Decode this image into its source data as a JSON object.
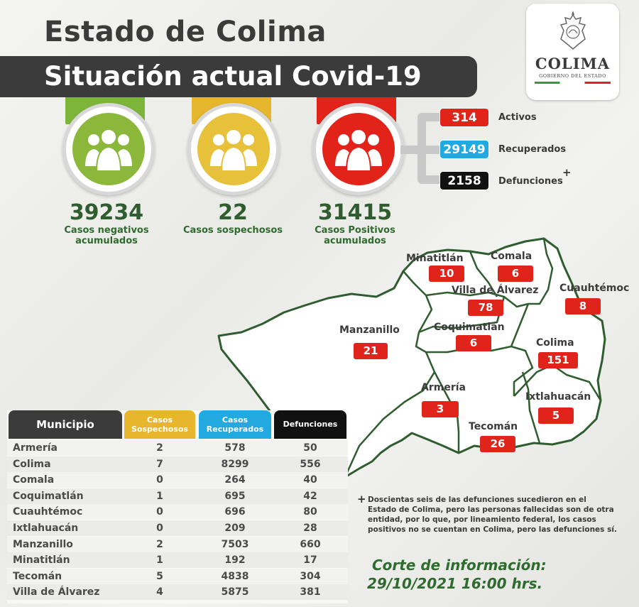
{
  "header": {
    "title": "Estado de Colima",
    "subtitle": "Situación actual Covid-19"
  },
  "logo": {
    "word": "COLIMA",
    "sub": "GOBIERNO DEL ESTADO"
  },
  "summary": {
    "negativos": {
      "value": "39234",
      "caption_1": "Casos negativos",
      "caption_2": "acumulados",
      "color": "#8bb83a",
      "tab_color": "#7db53b"
    },
    "sospechosos": {
      "value": "22",
      "caption_1": "Casos sospechosos",
      "color": "#e7c13a",
      "tab_color": "#e5b62e"
    },
    "positivos": {
      "value": "31415",
      "caption_1": "Casos Positivos",
      "caption_2": "acumulados",
      "color": "#e2231a",
      "tab_color": "#e2231a"
    }
  },
  "stats": [
    {
      "value": "314",
      "label": "Activos",
      "color": "#e2231a"
    },
    {
      "value": "29149",
      "label": "Recuperados",
      "color": "#22a9df"
    },
    {
      "value": "2158",
      "label": "Defunciones",
      "color": "#111111",
      "mark": "+"
    }
  ],
  "map": {
    "regions": [
      {
        "name": "Minatitlán",
        "value": "10"
      },
      {
        "name": "Comala",
        "value": "6"
      },
      {
        "name": "Villa de Álvarez",
        "value": "78"
      },
      {
        "name": "Cuauhtémoc",
        "value": "8"
      },
      {
        "name": "Manzanillo",
        "value": "21"
      },
      {
        "name": "Coquimatlán",
        "value": "6"
      },
      {
        "name": "Colima",
        "value": "151"
      },
      {
        "name": "Armería",
        "value": "3"
      },
      {
        "name": "Ixtlahuacán",
        "value": "5"
      },
      {
        "name": "Tecomán",
        "value": "26"
      }
    ]
  },
  "table": {
    "headers": {
      "municipio": "Municipio",
      "sospechosos_1": "Casos",
      "sospechosos_2": "Sospechosos",
      "recuperados_1": "Casos",
      "recuperados_2": "Recuperados",
      "defunciones": "Defunciones"
    },
    "header_colors": {
      "municipio": "#3b3b3b",
      "sospechosos": "#e7b62c",
      "recuperados": "#22a9df",
      "defunciones": "#111111"
    },
    "rows": [
      {
        "municipio": "Armería",
        "sospechosos": "2",
        "recuperados": "578",
        "defunciones": "50"
      },
      {
        "municipio": "Colima",
        "sospechosos": "7",
        "recuperados": "8299",
        "defunciones": "556"
      },
      {
        "municipio": "Comala",
        "sospechosos": "0",
        "recuperados": "264",
        "defunciones": "40"
      },
      {
        "municipio": "Coquimatlán",
        "sospechosos": "1",
        "recuperados": "695",
        "defunciones": "42"
      },
      {
        "municipio": "Cuauhtémoc",
        "sospechosos": "0",
        "recuperados": "696",
        "defunciones": "80"
      },
      {
        "municipio": "Ixtlahuacán",
        "sospechosos": "0",
        "recuperados": "209",
        "defunciones": "28"
      },
      {
        "municipio": "Manzanillo",
        "sospechosos": "2",
        "recuperados": "7503",
        "defunciones": "660"
      },
      {
        "municipio": "Minatitlán",
        "sospechosos": "1",
        "recuperados": "192",
        "defunciones": "17"
      },
      {
        "municipio": "Tecomán",
        "sospechosos": "5",
        "recuperados": "4838",
        "defunciones": "304"
      },
      {
        "municipio": "Villa de Álvarez",
        "sospechosos": "4",
        "recuperados": "5875",
        "defunciones": "381"
      }
    ]
  },
  "note": {
    "mark": "+",
    "line_1": "Doscientas seis de las defunciones sucedieron en el",
    "line_2": "Estado de Colima, pero las personas fallecidas son de otra",
    "line_3": "entidad, por lo que, por lineamiento federal, los casos",
    "line_4": "positivos no se cuentan en Colima, pero las defunciones sí."
  },
  "corte": {
    "label": "Corte de información:",
    "datetime": "29/10/2021 16:00 hrs."
  }
}
